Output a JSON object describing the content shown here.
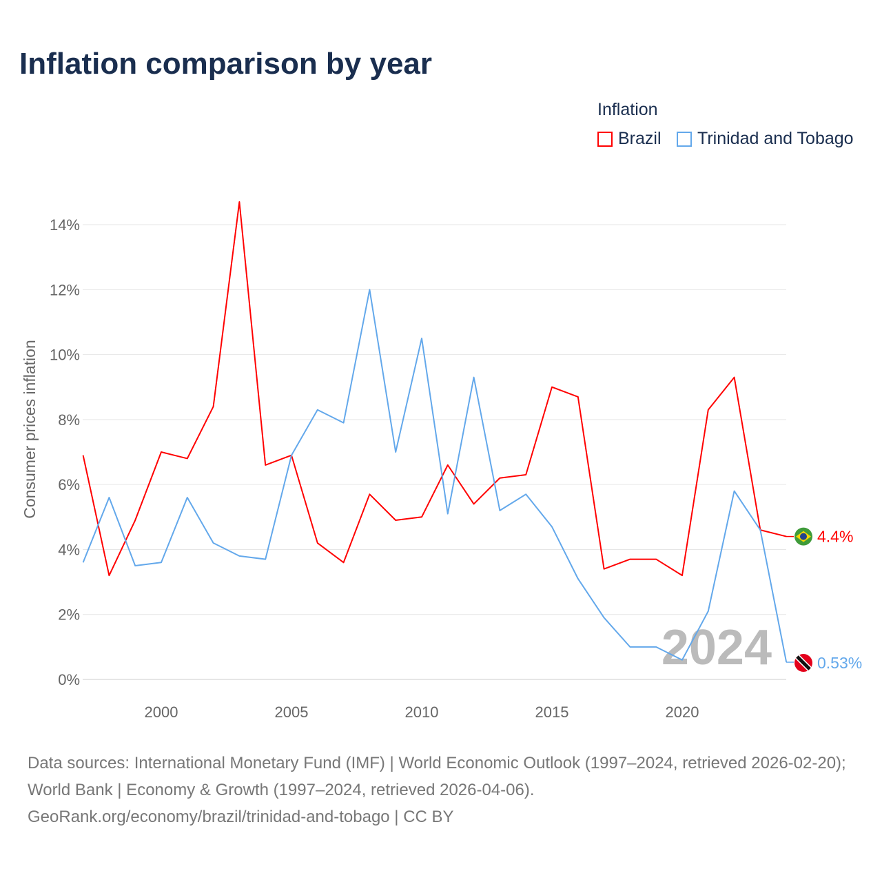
{
  "title": "Inflation comparison by year",
  "legend_title": "Inflation",
  "source": "Data sources: International Monetary Fund (IMF) | World Economic Outlook (1997–2024, retrieved 2026-02-20); World Bank | Economy & Growth (1997–2024, retrieved 2026-04-06).",
  "url": "GeoRank.org/economy/brazil/trinidad-and-tobago | CC BY",
  "chart_data": {
    "type": "line",
    "title": "Inflation comparison by year",
    "ylabel": "Consumer prices inflation",
    "xlabel": "",
    "xlim": [
      1997,
      2024
    ],
    "ylim": [
      0,
      14.7
    ],
    "yticks": [
      0,
      2,
      4,
      6,
      8,
      10,
      12,
      14
    ],
    "ytick_labels": [
      "0%",
      "2%",
      "4%",
      "6%",
      "8%",
      "10%",
      "12%",
      "14%"
    ],
    "xticks": [
      2000,
      2005,
      2010,
      2015,
      2020
    ],
    "xtick_labels": [
      "2000",
      "2005",
      "2010",
      "2015",
      "2020"
    ],
    "year_watermark": "2024",
    "legend_placement": "top-right",
    "x": [
      1997,
      1998,
      1999,
      2000,
      2001,
      2002,
      2003,
      2004,
      2005,
      2006,
      2007,
      2008,
      2009,
      2010,
      2011,
      2012,
      2013,
      2014,
      2015,
      2016,
      2017,
      2018,
      2019,
      2020,
      2021,
      2022,
      2023,
      2024
    ],
    "series": [
      {
        "name": "Brazil",
        "color": "#ff0000",
        "end_label": "4.4%",
        "values": [
          6.9,
          3.2,
          4.9,
          7.0,
          6.8,
          8.4,
          14.7,
          6.6,
          6.9,
          4.2,
          3.6,
          5.7,
          4.9,
          5.0,
          6.6,
          5.4,
          6.2,
          6.3,
          9.0,
          8.7,
          3.4,
          3.7,
          3.7,
          3.2,
          8.3,
          9.3,
          4.6,
          4.4
        ]
      },
      {
        "name": "Trinidad and Tobago",
        "color": "#63a8eb",
        "end_label": "0.53%",
        "values": [
          3.6,
          5.6,
          3.5,
          3.6,
          5.6,
          4.2,
          3.8,
          3.7,
          6.9,
          8.3,
          7.9,
          12.0,
          7.0,
          10.5,
          5.1,
          9.3,
          5.2,
          5.7,
          4.7,
          3.1,
          1.9,
          1.0,
          1.0,
          0.6,
          2.1,
          5.8,
          4.6,
          0.53
        ]
      }
    ]
  }
}
